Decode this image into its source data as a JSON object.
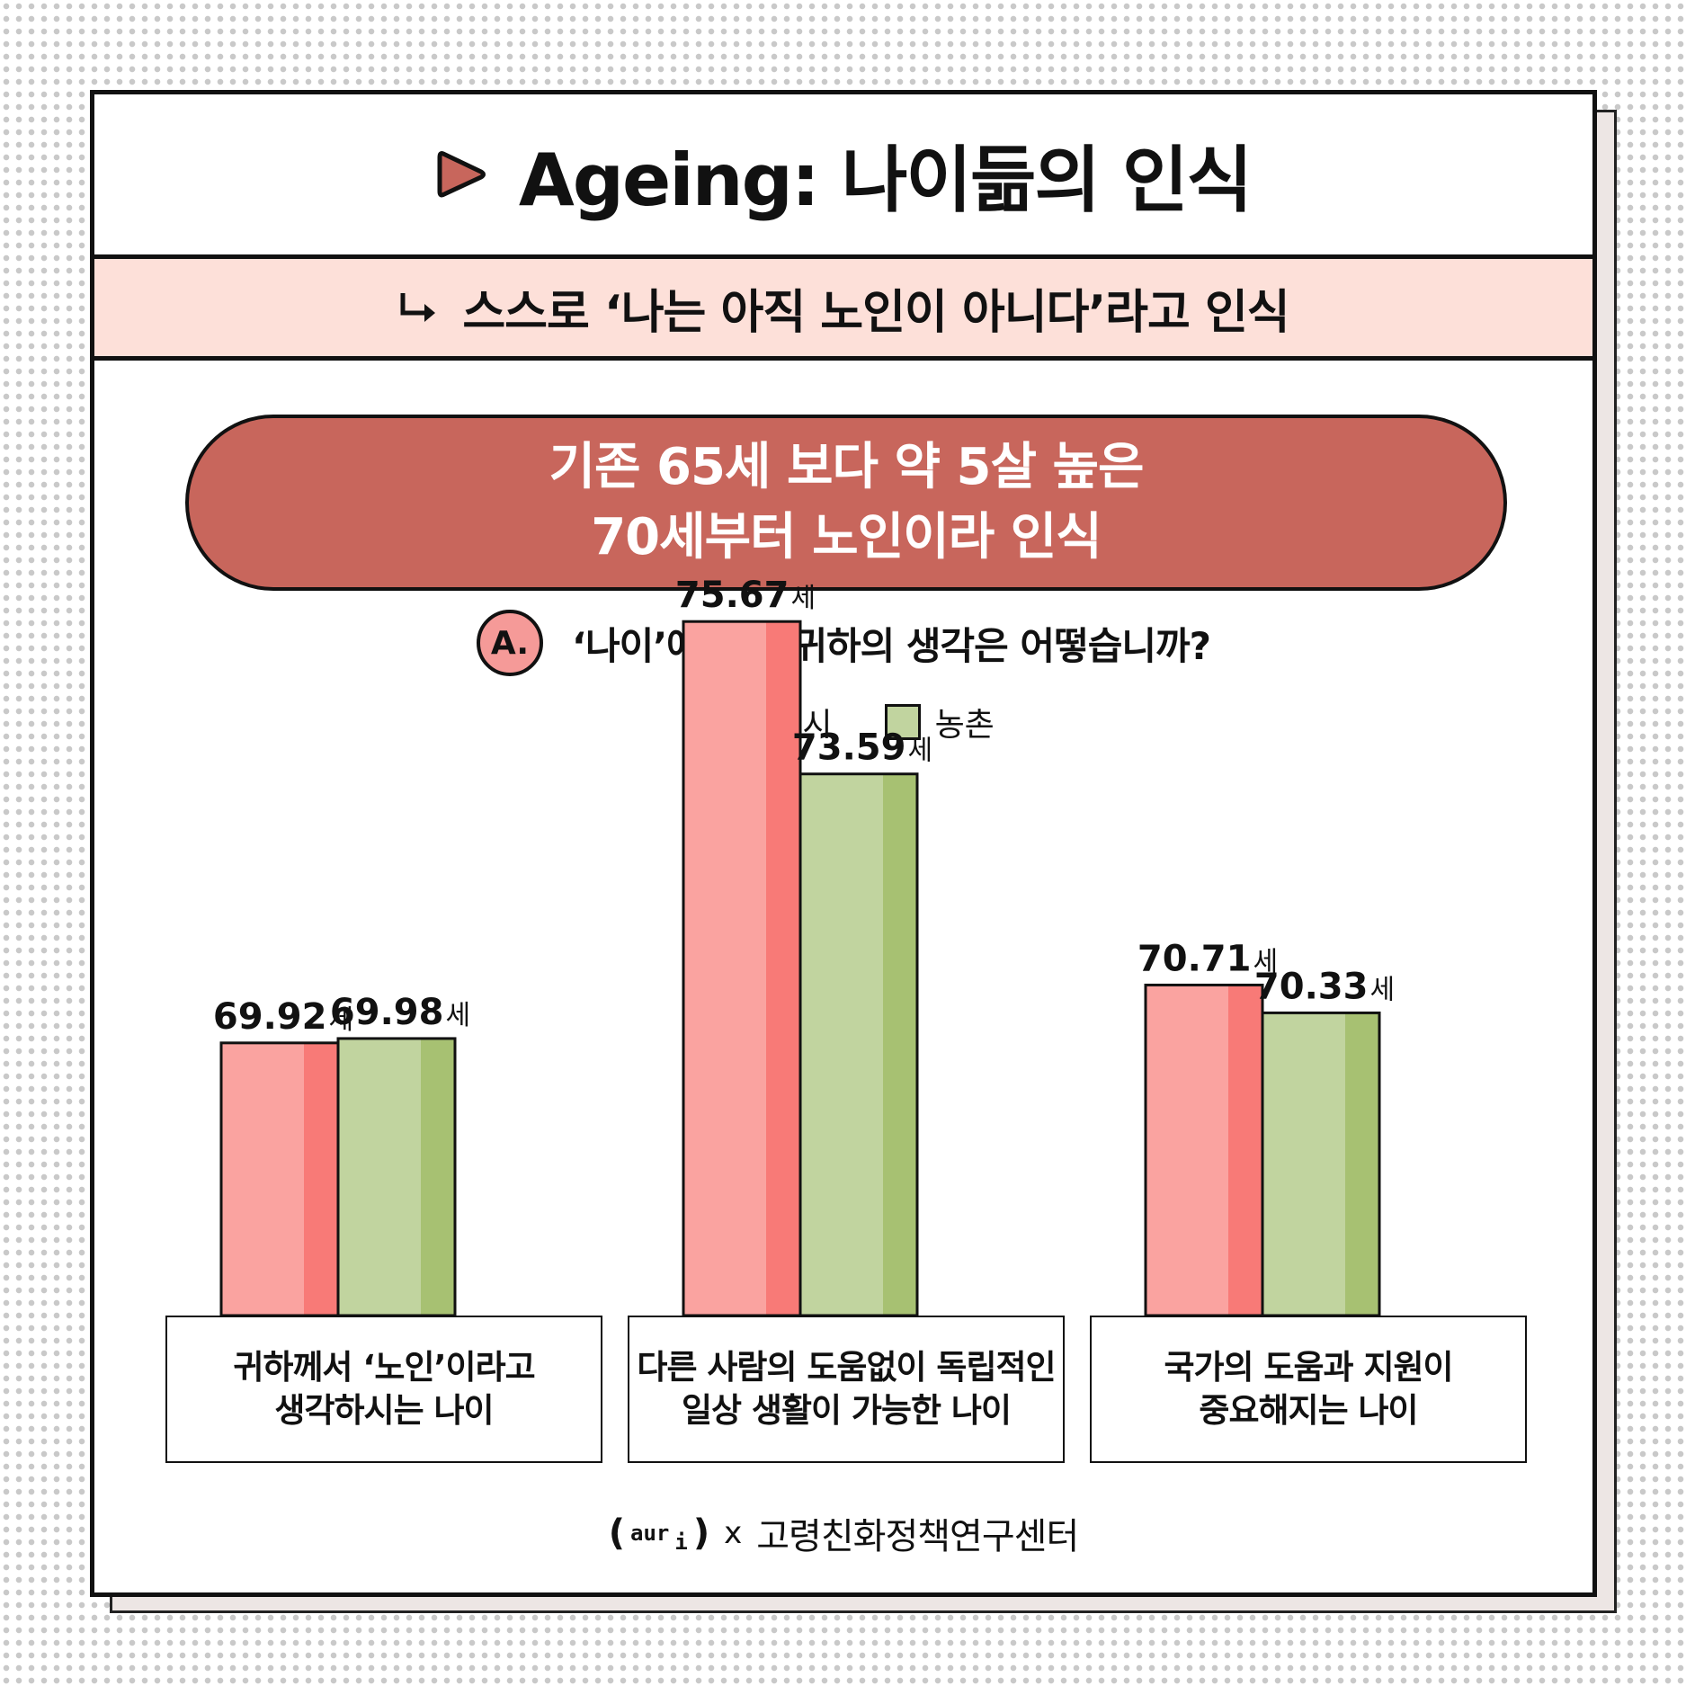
{
  "header": {
    "title": "Ageing: 나이듦의 인식",
    "subtitle": "스스로 ‘나는 아직 노인이 아니다’라고 인식",
    "highlight_line1": "기존 65세 보다 약 5살 높은",
    "highlight_line2": "70세부터 노인이라 인식"
  },
  "question": {
    "badge": "A.",
    "text": "‘나이’에 관한 귀하의 생각은 어떻습니까?"
  },
  "colors": {
    "accent": "#c8665c",
    "pink_light": "#faa3a0",
    "pink_dark": "#f87a77",
    "green_light": "#c1d49f",
    "green_dark": "#a7c172"
  },
  "chart_data": {
    "type": "bar",
    "categories": [
      "귀하께서 ‘노인’이라고\n생각하시는 나이",
      "다른 사람의 도움없이 독립적인\n일상 생활이 가능한 나이",
      "국가의 도움과 지원이\n중요해지는 나이"
    ],
    "series": [
      {
        "name": "광역시",
        "values": [
          69.92,
          75.67,
          70.71
        ]
      },
      {
        "name": "농촌",
        "values": [
          69.98,
          73.59,
          70.33
        ]
      }
    ],
    "value_labels": [
      [
        "69.92",
        "75.67",
        "70.71"
      ],
      [
        "69.98",
        "73.59",
        "70.33"
      ]
    ],
    "unit": "세"
  },
  "footer": {
    "logo_open": "(",
    "logo_main": "aur",
    "logo_sub": "i",
    "logo_close": ")",
    "x": "x",
    "org": "고령친화정책연구센터"
  }
}
